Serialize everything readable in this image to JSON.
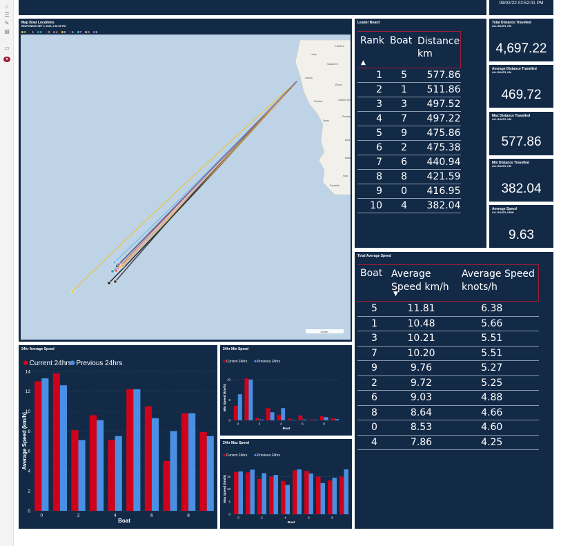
{
  "header": {
    "timestamp": "09/02/22 02:52:01 PM"
  },
  "map": {
    "title": "Map Boat Locations",
    "subtitle": "RESPONSES SEP 2, 2022, 2:52:55 PM",
    "legend": [
      {
        "label": "0",
        "color": "#f0c419"
      },
      {
        "label": "1",
        "color": "#1f1f1f"
      },
      {
        "label": "2",
        "color": "#11a6a8"
      },
      {
        "label": "3",
        "color": "#2b2f3a"
      },
      {
        "label": "4",
        "color": "#e05a60"
      },
      {
        "label": "5",
        "color": "#f1c232"
      },
      {
        "label": "6",
        "color": "#3a3a3a"
      },
      {
        "label": "7",
        "color": "#57b8e6"
      },
      {
        "label": "8",
        "color": "#e79a6d"
      },
      {
        "label": "9",
        "color": "#8f6db8"
      }
    ],
    "place_labels": [
      "Lisboa",
      "Setúbal",
      "Sines",
      "Évora",
      "Faro",
      "Portimão",
      "Beja",
      "Santarém",
      "Leiria",
      "Coimbra",
      "Castelo Branco",
      "Portalegre",
      "Badajoz"
    ],
    "scale_label": "20 km"
  },
  "leader_board": {
    "title": "Leader Board",
    "headers": [
      "Rank",
      "Boat",
      "Distance km"
    ],
    "rows": [
      [
        "1",
        "5",
        "577.86"
      ],
      [
        "2",
        "1",
        "511.86"
      ],
      [
        "3",
        "3",
        "497.52"
      ],
      [
        "4",
        "7",
        "497.22"
      ],
      [
        "5",
        "9",
        "475.86"
      ],
      [
        "6",
        "2",
        "475.38"
      ],
      [
        "7",
        "6",
        "440.94"
      ],
      [
        "8",
        "8",
        "421.59"
      ],
      [
        "9",
        "0",
        "416.95"
      ],
      [
        "10",
        "4",
        "382.04"
      ]
    ]
  },
  "kpis": [
    {
      "title": "Total Distance Travelled",
      "sub": "ALL BOATS, KM",
      "value": "4,697.22"
    },
    {
      "title": "Average Distance Travelled",
      "sub": "ALL BOATS, KM",
      "value": "469.72"
    },
    {
      "title": "Max Distance Travelled",
      "sub": "ALL BOATS, KM",
      "value": "577.86"
    },
    {
      "title": "Min Distance Travelled",
      "sub": "ALL BOATS, KM",
      "value": "382.04"
    },
    {
      "title": "Average Speed",
      "sub": "ALL BOATS, KM/H",
      "value": "9.63"
    }
  ],
  "speed_table": {
    "title": "Total Average Speed",
    "headers": [
      "Boat",
      "Average Speed km/h",
      "Average Speed knots/h"
    ],
    "rows": [
      [
        "5",
        "11.81",
        "6.38"
      ],
      [
        "1",
        "10.48",
        "5.66"
      ],
      [
        "3",
        "10.21",
        "5.51"
      ],
      [
        "7",
        "10.20",
        "5.51"
      ],
      [
        "9",
        "9.76",
        "5.27"
      ],
      [
        "2",
        "9.72",
        "5.25"
      ],
      [
        "6",
        "9.03",
        "4.88"
      ],
      [
        "8",
        "8.64",
        "4.66"
      ],
      [
        "0",
        "8.53",
        "4.60"
      ],
      [
        "4",
        "7.86",
        "4.25"
      ]
    ]
  },
  "colors": {
    "current": "#d0021b",
    "previous": "#4a90e2",
    "panel": "#132a47",
    "accent": "#a11c36"
  },
  "chart_data": [
    {
      "type": "bar",
      "title": "24hr Average Speed",
      "series": [
        {
          "name": "Current 24hrs",
          "values": [
            13.0,
            13.8,
            8.1,
            9.6,
            7.1,
            12.2,
            10.5,
            5.0,
            9.8,
            7.9
          ]
        },
        {
          "name": "Previous 24hrs",
          "values": [
            13.3,
            12.6,
            7.1,
            9.1,
            7.5,
            12.2,
            9.3,
            8.0,
            9.8,
            7.5
          ]
        }
      ],
      "categories": [
        "0",
        "1",
        "2",
        "3",
        "4",
        "5",
        "6",
        "7",
        "8",
        "9"
      ],
      "x_ticks": [
        "0",
        "2",
        "4",
        "6",
        "8"
      ],
      "y_ticks": [
        "0",
        "2",
        "4",
        "6",
        "8",
        "10",
        "12",
        "14"
      ],
      "xlabel": "Boat",
      "ylabel": "Average Speed (km/h)",
      "ylim": [
        0,
        14
      ],
      "legend": "top-left"
    },
    {
      "type": "bar",
      "title": "24hr Min Speed",
      "series": [
        {
          "name": "Current 24hrs",
          "values": [
            3.6,
            10.3,
            0.5,
            3.0,
            1.3,
            0.4,
            1.2,
            0.2,
            1.0,
            0.5
          ]
        },
        {
          "name": "Previous 24hrs",
          "values": [
            6.4,
            10.0,
            0.2,
            2.0,
            3.0,
            0.1,
            0.2,
            0.1,
            0.8,
            0.3
          ]
        }
      ],
      "categories": [
        "0",
        "1",
        "2",
        "3",
        "4",
        "5",
        "6",
        "7",
        "8",
        "9"
      ],
      "x_ticks": [
        "0",
        "2",
        "4",
        "6",
        "8"
      ],
      "y_ticks": [
        "0",
        "5",
        "10"
      ],
      "xlabel": "Boat",
      "ylabel": "Min Speed (km/h)",
      "ylim": [
        0,
        11
      ],
      "legend": "top-left"
    },
    {
      "type": "bar",
      "title": "24hr Max Speed",
      "series": [
        {
          "name": "Current 24hrs",
          "values": [
            16.8,
            16.6,
            14.0,
            14.9,
            13.2,
            17.4,
            17.2,
            14.9,
            13.4,
            14.9
          ]
        },
        {
          "name": "Previous 24hrs",
          "values": [
            17.0,
            17.7,
            16.3,
            15.6,
            11.6,
            17.8,
            16.2,
            12.4,
            14.5,
            17.8
          ]
        }
      ],
      "categories": [
        "0",
        "1",
        "2",
        "3",
        "4",
        "5",
        "6",
        "7",
        "8",
        "9"
      ],
      "x_ticks": [
        "0",
        "2",
        "4",
        "6",
        "8"
      ],
      "y_ticks": [
        "0",
        "5",
        "10",
        "15"
      ],
      "xlabel": "Boat",
      "ylabel": "Max Speed (km/h)",
      "ylim": [
        0,
        20
      ],
      "legend": "top-left"
    }
  ]
}
